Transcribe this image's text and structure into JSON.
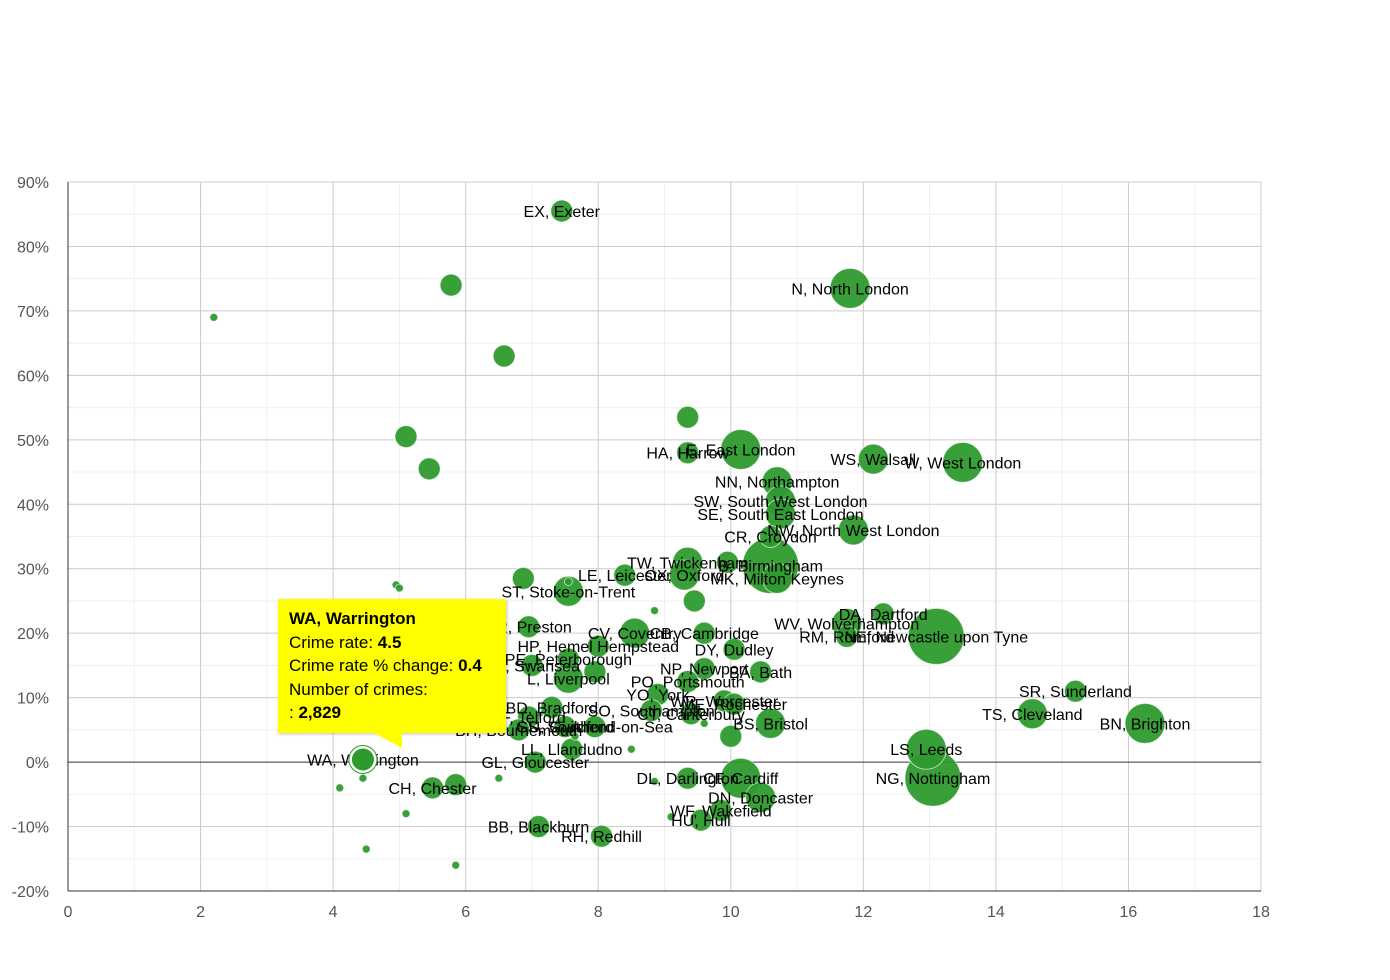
{
  "chart_data": {
    "type": "scatter",
    "subtype": "bubble",
    "xlim": [
      0,
      18
    ],
    "ylim": [
      -20,
      90
    ],
    "x_ticks": [
      "0",
      "2",
      "4",
      "6",
      "8",
      "10",
      "12",
      "14",
      "16",
      "18"
    ],
    "y_ticks": [
      "-20%",
      "-10%",
      "0%",
      "10%",
      "20%",
      "30%",
      "40%",
      "50%",
      "60%",
      "70%",
      "80%",
      "90%"
    ],
    "grid": true,
    "point_color": "#2e9a2e",
    "points": [
      {
        "label": "EX, Exeter",
        "x": 7.45,
        "y": 85.5,
        "size": 2
      },
      {
        "label": "",
        "x": 5.78,
        "y": 74,
        "size": 2
      },
      {
        "label": "",
        "x": 2.2,
        "y": 69,
        "size": 1
      },
      {
        "label": "N, North London",
        "x": 11.8,
        "y": 73.5,
        "size": 4
      },
      {
        "label": "",
        "x": 6.58,
        "y": 63,
        "size": 2
      },
      {
        "label": "",
        "x": 5.1,
        "y": 50.5,
        "size": 2
      },
      {
        "label": "",
        "x": 5.45,
        "y": 45.5,
        "size": 2
      },
      {
        "label": "",
        "x": 9.35,
        "y": 53.5,
        "size": 2
      },
      {
        "label": "HA, Harrow",
        "x": 9.35,
        "y": 48,
        "size": 2
      },
      {
        "label": "E, East London",
        "x": 10.15,
        "y": 48.5,
        "size": 4
      },
      {
        "label": "WS, Walsall",
        "x": 12.15,
        "y": 47,
        "size": 3
      },
      {
        "label": "W, West London",
        "x": 13.5,
        "y": 46.5,
        "size": 4
      },
      {
        "label": "NN, Northampton",
        "x": 10.7,
        "y": 43.5,
        "size": 3
      },
      {
        "label": "SW, South West London",
        "x": 10.75,
        "y": 40.5,
        "size": 3
      },
      {
        "label": "SE, South East London",
        "x": 10.75,
        "y": 38.5,
        "size": 3
      },
      {
        "label": "NW, North West London",
        "x": 11.85,
        "y": 36,
        "size": 3
      },
      {
        "label": "CR, Croydon",
        "x": 10.6,
        "y": 35,
        "size": 2
      },
      {
        "label": "TW, Twickenham",
        "x": 9.35,
        "y": 31,
        "size": 3
      },
      {
        "label": "B, Birmingham",
        "x": 10.6,
        "y": 30.5,
        "size": 5
      },
      {
        "label": "",
        "x": 9.95,
        "y": 31,
        "size": 2
      },
      {
        "label": "MK, Milton Keynes",
        "x": 10.7,
        "y": 28.5,
        "size": 3
      },
      {
        "label": "OX, Oxford",
        "x": 9.3,
        "y": 29,
        "size": 3
      },
      {
        "label": "LE, Leicester",
        "x": 8.4,
        "y": 29,
        "size": 2
      },
      {
        "label": "",
        "x": 6.87,
        "y": 28.5,
        "size": 2
      },
      {
        "label": "",
        "x": 7.55,
        "y": 28,
        "size": 1
      },
      {
        "label": "ST, Stoke-on-Trent",
        "x": 7.55,
        "y": 26.5,
        "size": 3
      },
      {
        "label": "",
        "x": 4.95,
        "y": 27.5,
        "size": 1
      },
      {
        "label": "",
        "x": 5.0,
        "y": 27,
        "size": 1
      },
      {
        "label": "",
        "x": 9.45,
        "y": 25,
        "size": 2
      },
      {
        "label": "",
        "x": 8.85,
        "y": 23.5,
        "size": 1
      },
      {
        "label": "DA, Dartford",
        "x": 12.3,
        "y": 23,
        "size": 2
      },
      {
        "label": "WV, Wolverhampton",
        "x": 11.75,
        "y": 21.5,
        "size": 3
      },
      {
        "label": "NE, Newcastle upon Tyne",
        "x": 13.1,
        "y": 19.5,
        "size": 5
      },
      {
        "label": "RM, Romford",
        "x": 11.75,
        "y": 19.5,
        "size": 2
      },
      {
        "label": "PR, Preston",
        "x": 6.95,
        "y": 21,
        "size": 2
      },
      {
        "label": "CV, Coventry",
        "x": 8.55,
        "y": 20,
        "size": 3
      },
      {
        "label": "CB, Cambridge",
        "x": 9.6,
        "y": 20,
        "size": 2
      },
      {
        "label": "DY, Dudley",
        "x": 10.05,
        "y": 17.5,
        "size": 2
      },
      {
        "label": "HP, Hemel Hempstead",
        "x": 8.0,
        "y": 18,
        "size": 2
      },
      {
        "label": "PE, Peterborough",
        "x": 7.55,
        "y": 16,
        "size": 2
      },
      {
        "label": "SA, Swansea",
        "x": 7.0,
        "y": 15,
        "size": 2
      },
      {
        "label": "L, Liverpool",
        "x": 7.55,
        "y": 13,
        "size": 3
      },
      {
        "label": "NP, Newport",
        "x": 9.6,
        "y": 14.5,
        "size": 2
      },
      {
        "label": "BA, Bath",
        "x": 10.45,
        "y": 14,
        "size": 2
      },
      {
        "label": "PO, Portsmouth",
        "x": 9.35,
        "y": 12.5,
        "size": 2
      },
      {
        "label": "",
        "x": 7.95,
        "y": 14,
        "size": 2
      },
      {
        "label": "YO, York",
        "x": 8.9,
        "y": 10.5,
        "size": 2
      },
      {
        "label": "WR, Worcester",
        "x": 9.9,
        "y": 9.5,
        "size": 2
      },
      {
        "label": "ME, Rochester",
        "x": 10.05,
        "y": 9,
        "size": 2
      },
      {
        "label": "BD, Bradford",
        "x": 7.3,
        "y": 8.5,
        "size": 2
      },
      {
        "label": "SO, Southampton",
        "x": 8.8,
        "y": 8,
        "size": 2
      },
      {
        "label": "CT, Canterbury",
        "x": 9.4,
        "y": 7.5,
        "size": 2
      },
      {
        "label": "TF, Telford",
        "x": 6.95,
        "y": 7,
        "size": 2
      },
      {
        "label": "BS, Bristol",
        "x": 10.6,
        "y": 6,
        "size": 3
      },
      {
        "label": "SS, Southend-on-Sea",
        "x": 7.95,
        "y": 5.5,
        "size": 2
      },
      {
        "label": "",
        "x": 9.6,
        "y": 6,
        "size": 1
      },
      {
        "label": "BH, Bournemouth",
        "x": 6.8,
        "y": 5,
        "size": 2
      },
      {
        "label": "GU, Guildford",
        "x": 7.5,
        "y": 5.5,
        "size": 2
      },
      {
        "label": "",
        "x": 10.0,
        "y": 4,
        "size": 2
      },
      {
        "label": "",
        "x": 7.65,
        "y": 4,
        "size": 1
      },
      {
        "label": "SR, Sunderland",
        "x": 15.2,
        "y": 11,
        "size": 2
      },
      {
        "label": "TS, Cleveland",
        "x": 14.55,
        "y": 7.5,
        "size": 3
      },
      {
        "label": "BN, Brighton",
        "x": 16.25,
        "y": 6,
        "size": 4
      },
      {
        "label": "LS, Leeds",
        "x": 12.95,
        "y": 2,
        "size": 4
      },
      {
        "label": "LL, Llandudno",
        "x": 7.6,
        "y": 2,
        "size": 2
      },
      {
        "label": "",
        "x": 8.5,
        "y": 2,
        "size": 1
      },
      {
        "label": "WA, Warrington",
        "x": 4.45,
        "y": 0.4,
        "size": 2
      },
      {
        "label": "GL, Gloucester",
        "x": 7.05,
        "y": 0,
        "size": 2
      },
      {
        "label": "NG, Nottingham",
        "x": 13.05,
        "y": -2.5,
        "size": 5
      },
      {
        "label": "CF, Cardiff",
        "x": 10.15,
        "y": -2.5,
        "size": 4
      },
      {
        "label": "DL, Darlington",
        "x": 9.35,
        "y": -2.5,
        "size": 2
      },
      {
        "label": "",
        "x": 8.85,
        "y": -3,
        "size": 1
      },
      {
        "label": "",
        "x": 6.5,
        "y": -2.5,
        "size": 1
      },
      {
        "label": "",
        "x": 4.45,
        "y": -2.5,
        "size": 1
      },
      {
        "label": "CH, Chester",
        "x": 5.5,
        "y": -4,
        "size": 2
      },
      {
        "label": "",
        "x": 5.85,
        "y": -3.5,
        "size": 2
      },
      {
        "label": "",
        "x": 4.1,
        "y": -4,
        "size": 1
      },
      {
        "label": "DN, Doncaster",
        "x": 10.45,
        "y": -5.5,
        "size": 3
      },
      {
        "label": "WF, Wakefield",
        "x": 9.85,
        "y": -7.5,
        "size": 2
      },
      {
        "label": "",
        "x": 5.1,
        "y": -8,
        "size": 1
      },
      {
        "label": "HU, Hull",
        "x": 9.55,
        "y": -9,
        "size": 2
      },
      {
        "label": "",
        "x": 9.1,
        "y": -8.5,
        "size": 1
      },
      {
        "label": "BB, Blackburn",
        "x": 7.1,
        "y": -10,
        "size": 2
      },
      {
        "label": "RH, Redhill",
        "x": 8.05,
        "y": -11.5,
        "size": 2
      },
      {
        "label": "",
        "x": 4.5,
        "y": -13.5,
        "size": 1
      },
      {
        "label": "",
        "x": 5.85,
        "y": -16,
        "size": 1
      }
    ]
  },
  "tooltip": {
    "title": "WA, Warrington",
    "crime_rate_label": "Crime rate: ",
    "crime_rate_value": "4.5",
    "change_label": "Crime rate % change: ",
    "change_value": "0.4",
    "count_label": "Number of crimes:",
    "count_prefix": ": ",
    "count_value": "2,829"
  }
}
